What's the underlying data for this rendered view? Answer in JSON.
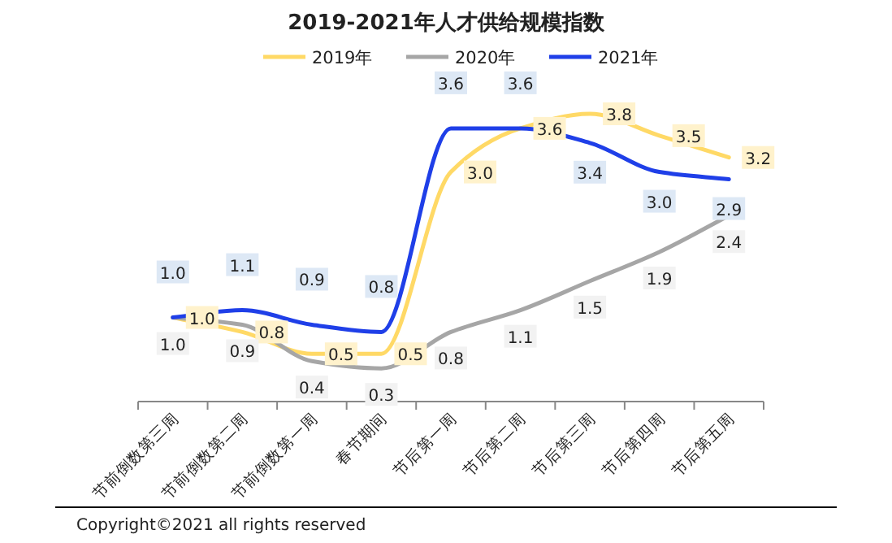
{
  "chart_data": {
    "type": "line",
    "title": "2019-2021年人才供给规模指数",
    "categories": [
      "节前倒数第三周",
      "节前倒数第二周",
      "节前倒数第一周",
      "春节期间",
      "节后第一周",
      "节后第二周",
      "节后第三周",
      "节后第四周",
      "节后第五周"
    ],
    "series": [
      {
        "name": "2019年",
        "color": "#ffd966",
        "values": [
          1.0,
          0.8,
          0.5,
          0.5,
          3.0,
          3.6,
          3.8,
          3.5,
          3.2
        ],
        "value_labels": [
          "1.0",
          "0.8",
          "0.5",
          "0.5",
          "3.0",
          "3.6",
          "3.8",
          "3.5",
          "3.2"
        ]
      },
      {
        "name": "2020年",
        "color": "#a6a6a6",
        "values": [
          1.0,
          0.9,
          0.4,
          0.3,
          0.8,
          1.1,
          1.5,
          1.9,
          2.4
        ],
        "value_labels": [
          "1.0",
          "0.9",
          "0.4",
          "0.3",
          "0.8",
          "1.1",
          "1.5",
          "1.9",
          "2.4"
        ]
      },
      {
        "name": "2021年",
        "color": "#1f3fe8",
        "values": [
          1.0,
          1.1,
          0.9,
          0.8,
          3.6,
          3.6,
          3.4,
          3.0,
          2.9
        ],
        "value_labels": [
          "1.0",
          "1.1",
          "0.9",
          "0.8",
          "3.6",
          "3.6",
          "3.4",
          "3.0",
          "2.9"
        ]
      }
    ],
    "legend": "top",
    "grid": false,
    "marker": "none",
    "annotations": [
      "Copyright©2021 all rights reserved"
    ]
  }
}
